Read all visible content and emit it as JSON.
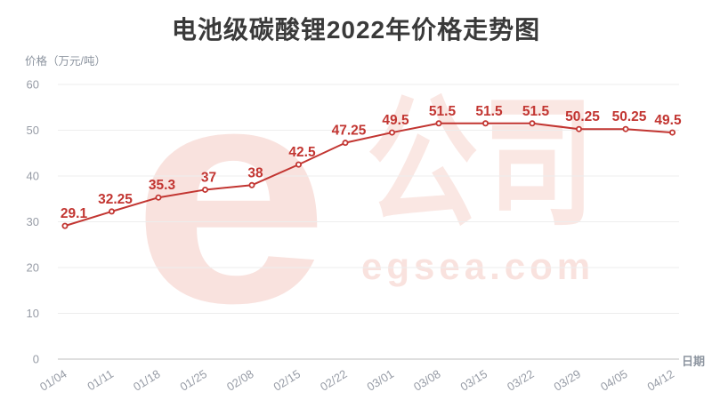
{
  "watermark": {
    "logo_text": "e",
    "brand_text": "公司",
    "domain_text": "egsea.com"
  },
  "colors": {
    "line": "#c23531",
    "marker_fill": "#ffffff",
    "data_label": "#c23531",
    "axis_text": "#979ca6",
    "gridline": "#ededed",
    "axis_line": "#cccccc",
    "title": "#3a3a3a",
    "watermark": "#f9e2de"
  },
  "chart_data": {
    "type": "line",
    "title": "电池级碳酸锂2022年价格走势图",
    "xlabel": "日期",
    "ylabel": "价格（万元/吨）",
    "categories": [
      "01/04",
      "01/11",
      "01/18",
      "01/25",
      "02/08",
      "02/15",
      "02/22",
      "03/01",
      "03/08",
      "03/15",
      "03/22",
      "03/29",
      "04/05",
      "04/12"
    ],
    "values": [
      29.1,
      32.25,
      35.3,
      37,
      38,
      42.5,
      47.25,
      49.5,
      51.5,
      51.5,
      51.5,
      50.25,
      50.25,
      49.5
    ],
    "data_labels": [
      "29.1",
      "32.25",
      "35.3",
      "37",
      "38",
      "42.5",
      "47.25",
      "49.5",
      "51.5",
      "51.5",
      "51.5",
      "50.25",
      "50.25",
      "49.5"
    ],
    "yticks": [
      0,
      10,
      20,
      30,
      40,
      50,
      60
    ],
    "ylim": [
      0,
      60
    ],
    "grid": "horizontal",
    "legend": "none"
  }
}
